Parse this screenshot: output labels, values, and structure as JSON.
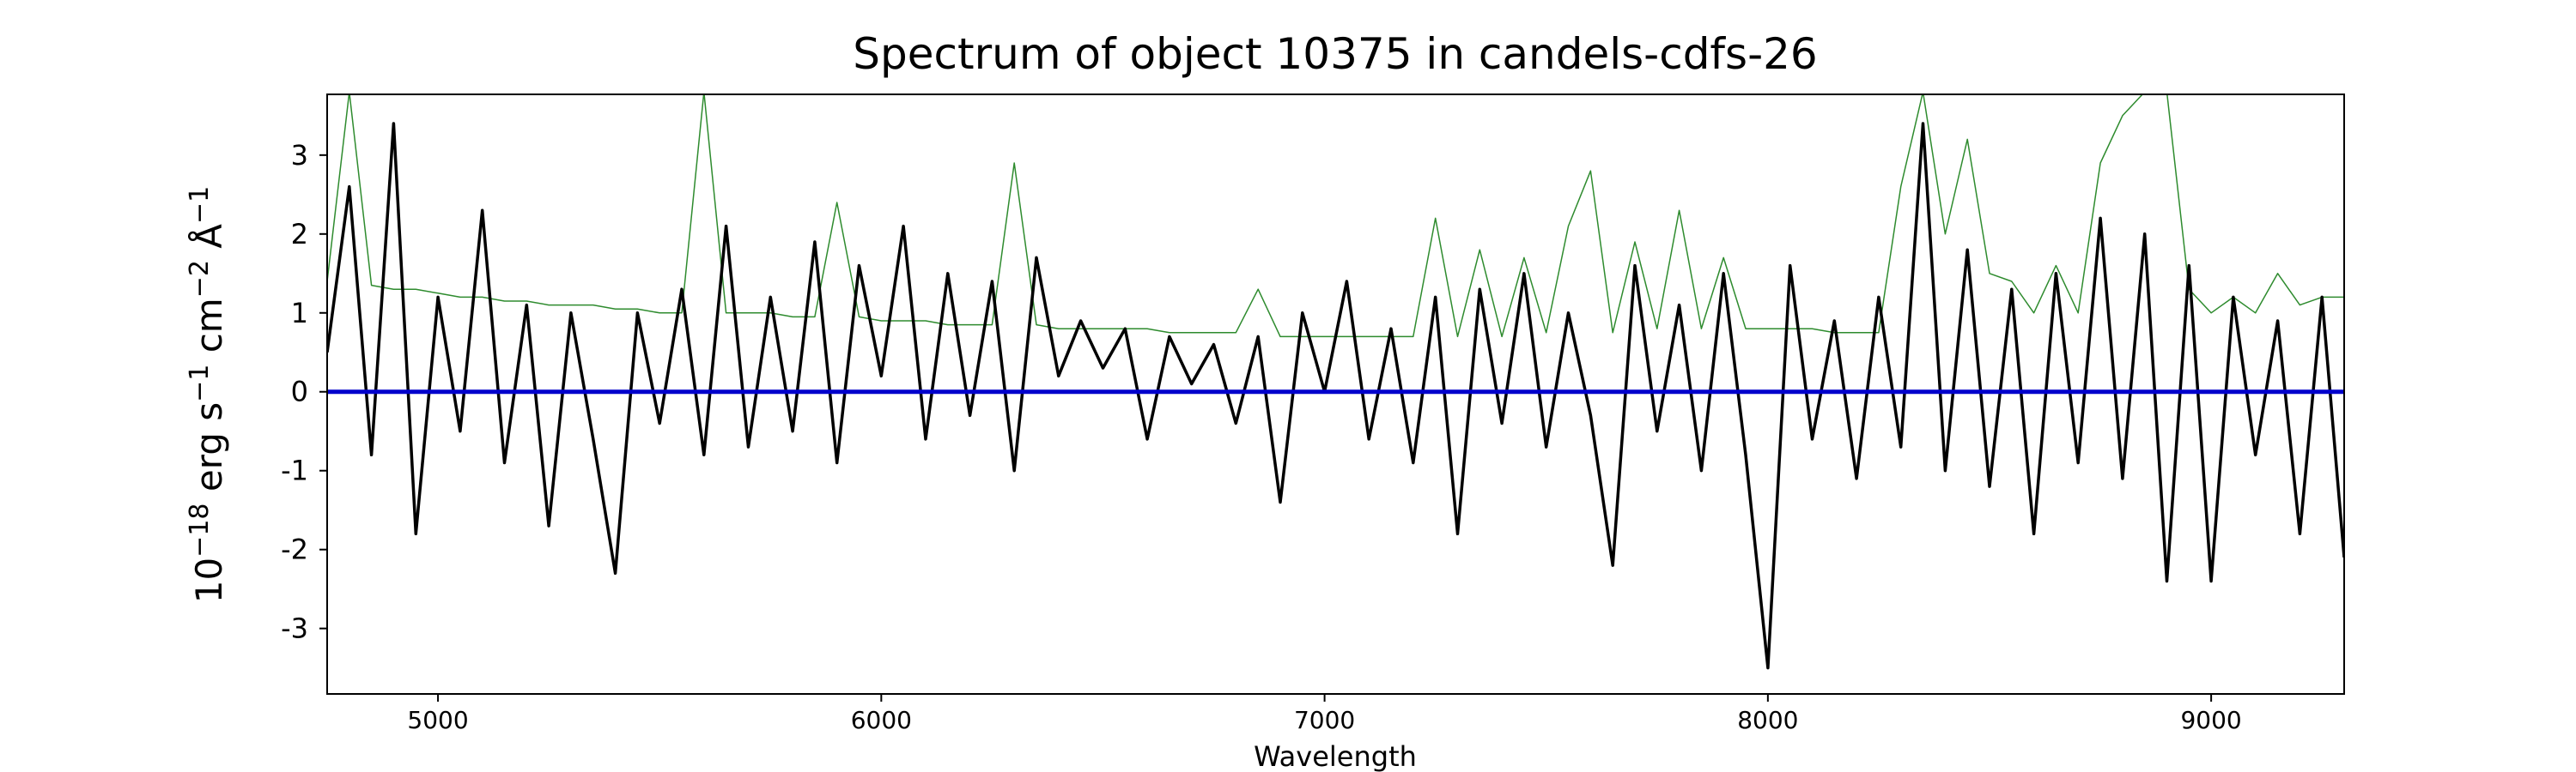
{
  "chart_data": {
    "type": "line",
    "title": "Spectrum of object 10375 in candels-cdfs-26",
    "x_label": "Wavelength",
    "y_label": [
      "10",
      "−18",
      " erg s",
      "−1",
      " cm",
      "−2",
      " Å",
      "−1"
    ],
    "x": [
      4750,
      4800,
      4850,
      4900,
      4950,
      5000,
      5050,
      5100,
      5150,
      5200,
      5250,
      5300,
      5350,
      5400,
      5450,
      5500,
      5550,
      5600,
      5650,
      5700,
      5750,
      5800,
      5850,
      5900,
      5950,
      6000,
      6050,
      6100,
      6150,
      6200,
      6250,
      6300,
      6350,
      6400,
      6450,
      6500,
      6550,
      6600,
      6650,
      6700,
      6750,
      6800,
      6850,
      6900,
      6950,
      7000,
      7050,
      7100,
      7150,
      7200,
      7250,
      7300,
      7350,
      7400,
      7450,
      7500,
      7550,
      7600,
      7650,
      7700,
      7750,
      7800,
      7850,
      7900,
      7950,
      8000,
      8050,
      8100,
      8150,
      8200,
      8250,
      8300,
      8350,
      8400,
      8450,
      8500,
      8550,
      8600,
      8650,
      8700,
      8750,
      8800,
      8850,
      8900,
      8950,
      9000,
      9050,
      9100,
      9150,
      9200,
      9250,
      9300
    ],
    "series": [
      {
        "color": "#2e8b2e",
        "width": 1.5,
        "values": [
          1.4,
          3.8,
          1.35,
          1.3,
          1.3,
          1.25,
          1.2,
          1.2,
          1.15,
          1.15,
          1.1,
          1.1,
          1.1,
          1.05,
          1.05,
          1.0,
          1.0,
          3.8,
          1.0,
          1.0,
          1.0,
          0.95,
          0.95,
          2.4,
          0.95,
          0.9,
          0.9,
          0.9,
          0.85,
          0.85,
          0.85,
          2.9,
          0.85,
          0.8,
          0.8,
          0.8,
          0.8,
          0.8,
          0.75,
          0.75,
          0.75,
          0.75,
          1.3,
          0.7,
          0.7,
          0.7,
          0.7,
          0.7,
          0.7,
          0.7,
          2.2,
          0.7,
          1.8,
          0.7,
          1.7,
          0.75,
          2.1,
          2.8,
          0.75,
          1.9,
          0.8,
          2.3,
          0.8,
          1.7,
          0.8,
          0.8,
          0.8,
          0.8,
          0.75,
          0.75,
          0.75,
          2.6,
          3.8,
          2.0,
          3.2,
          1.5,
          1.4,
          1.0,
          1.6,
          1.0,
          2.9,
          3.5,
          3.8,
          3.8,
          1.3,
          1.0,
          1.2,
          1.0,
          1.5,
          1.1,
          1.2,
          1.2
        ]
      },
      {
        "color": "#000000",
        "width": 3.5,
        "values": [
          0.5,
          2.6,
          -0.8,
          3.4,
          -1.8,
          1.2,
          -0.5,
          2.3,
          -0.9,
          1.1,
          -1.7,
          1.0,
          -0.6,
          -2.3,
          1.0,
          -0.4,
          1.3,
          -0.8,
          2.1,
          -0.7,
          1.2,
          -0.5,
          1.9,
          -0.9,
          1.6,
          0.2,
          2.1,
          -0.6,
          1.5,
          -0.3,
          1.4,
          -1.0,
          1.7,
          0.2,
          0.9,
          0.3,
          0.8,
          -0.6,
          0.7,
          0.1,
          0.6,
          -0.4,
          0.7,
          -1.4,
          1.0,
          0.0,
          1.4,
          -0.6,
          0.8,
          -0.9,
          1.2,
          -1.8,
          1.3,
          -0.4,
          1.5,
          -0.7,
          1.0,
          -0.3,
          -2.2,
          1.6,
          -0.5,
          1.1,
          -1.0,
          1.5,
          -0.8,
          -3.5,
          1.6,
          -0.6,
          0.9,
          -1.1,
          1.2,
          -0.7,
          3.4,
          -1.0,
          1.8,
          -1.2,
          1.3,
          -1.8,
          1.5,
          -0.9,
          2.2,
          -1.1,
          2.0,
          -2.4,
          1.6,
          -2.4,
          1.2,
          -0.8,
          0.9,
          -1.8,
          1.2,
          -2.1
        ]
      },
      {
        "color": "#0000cc",
        "width": 5,
        "values": [
          0,
          0,
          0,
          0,
          0,
          0,
          0,
          0,
          0,
          0,
          0,
          0,
          0,
          0,
          0,
          0,
          0,
          0,
          0,
          0,
          0,
          0,
          0,
          0,
          0,
          0,
          0,
          0,
          0,
          0,
          0,
          0,
          0,
          0,
          0,
          0,
          0,
          0,
          0,
          0,
          0,
          0,
          0,
          0,
          0,
          0,
          0,
          0,
          0,
          0,
          0,
          0,
          0,
          0,
          0,
          0,
          0,
          0,
          0,
          0,
          0,
          0,
          0,
          0,
          0,
          0,
          0,
          0,
          0,
          0,
          0,
          0,
          0,
          0,
          0,
          0,
          0,
          0,
          0,
          0,
          0,
          0,
          0,
          0,
          0,
          0,
          0,
          0,
          0,
          0,
          0,
          0
        ]
      }
    ],
    "xlim": [
      4750,
      9300
    ],
    "xticks": [
      5000,
      6000,
      7000,
      8000,
      9000
    ],
    "ylim": [
      -3.83,
      3.77
    ],
    "yticks": [
      -3,
      -2,
      -1,
      0,
      1,
      2,
      3
    ]
  }
}
